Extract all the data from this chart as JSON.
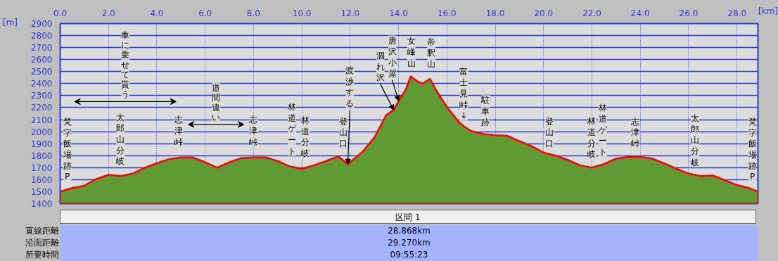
{
  "chart_data": {
    "type": "area",
    "xlabel": "[km]",
    "ylabel": "[m]",
    "xlim": [
      0,
      28.868
    ],
    "ylim": [
      1400,
      2900
    ],
    "xticks": [
      {
        "value": 0,
        "label": "0.0"
      },
      {
        "value": 2,
        "label": "2.0"
      },
      {
        "value": 4,
        "label": "4.0"
      },
      {
        "value": 6,
        "label": "6.0"
      },
      {
        "value": 8,
        "label": "8.0"
      },
      {
        "value": 10,
        "label": "10.0"
      },
      {
        "value": 12,
        "label": "12.0"
      },
      {
        "value": 14,
        "label": "14.0"
      },
      {
        "value": 16,
        "label": "16.0"
      },
      {
        "value": 18,
        "label": "18.0"
      },
      {
        "value": 20,
        "label": "20.0"
      },
      {
        "value": 22,
        "label": "22.0"
      },
      {
        "value": 24,
        "label": "24.0"
      },
      {
        "value": 26,
        "label": "26.0"
      },
      {
        "value": 28,
        "label": "28.0"
      }
    ],
    "yticks": [
      1400,
      1500,
      1600,
      1700,
      1800,
      1900,
      2000,
      2100,
      2200,
      2300,
      2400,
      2500,
      2600,
      2700,
      2800,
      2900
    ],
    "grid": true,
    "marker": "none",
    "series": [
      {
        "color": "#ff0000",
        "x": [
          0,
          0.5,
          1.0,
          1.5,
          2.0,
          2.5,
          3.0,
          3.5,
          4.0,
          4.5,
          5.0,
          5.5,
          6.0,
          6.5,
          7.0,
          7.5,
          8.0,
          8.5,
          9.0,
          9.5,
          10.0,
          10.5,
          11.0,
          11.5,
          11.9,
          12.5,
          13.0,
          13.5,
          13.8,
          14.0,
          14.3,
          14.5,
          14.8,
          15.0,
          15.3,
          15.6,
          16.0,
          16.5,
          16.7,
          17.0,
          17.5,
          18.0,
          18.5,
          19.0,
          19.5,
          20.0,
          20.5,
          21.0,
          21.5,
          22.0,
          22.5,
          23.0,
          23.5,
          24.0,
          24.5,
          25.0,
          25.5,
          26.0,
          26.5,
          27.0,
          27.5,
          28.0,
          28.5,
          28.868
        ],
        "values": [
          1500,
          1530,
          1550,
          1605,
          1640,
          1630,
          1650,
          1700,
          1737,
          1770,
          1785,
          1785,
          1745,
          1700,
          1745,
          1780,
          1785,
          1785,
          1755,
          1710,
          1690,
          1720,
          1755,
          1795,
          1730,
          1830,
          1950,
          2140,
          2180,
          2255,
          2350,
          2460,
          2415,
          2400,
          2440,
          2330,
          2205,
          2080,
          2045,
          2005,
          1980,
          1970,
          1965,
          1920,
          1880,
          1825,
          1800,
          1765,
          1720,
          1700,
          1730,
          1775,
          1790,
          1790,
          1775,
          1735,
          1690,
          1650,
          1630,
          1635,
          1595,
          1555,
          1530,
          1500
        ]
      }
    ],
    "annotations": [
      {
        "text": "梵字飯場跡P",
        "x": 0,
        "y": 1500
      },
      {
        "text": "太郎山分岐",
        "x": 2.5,
        "y": 1630
      },
      {
        "text": "志津峠",
        "x": 5.0,
        "y": 1785
      },
      {
        "text": "志津峠",
        "x": 8.0,
        "y": 1785
      },
      {
        "text": "林道ゲート",
        "x": 9.5,
        "y": 1710
      },
      {
        "text": "林道分岐",
        "x": 10.0,
        "y": 1690
      },
      {
        "text": "登山口",
        "x": 11.5,
        "y": 1795
      },
      {
        "text": "渡渉する",
        "x": 11.9,
        "y": 1730
      },
      {
        "text": "涸れ沢",
        "x": 13.8,
        "y": 2180
      },
      {
        "text": "唐沢小屋",
        "x": 14.0,
        "y": 2255
      },
      {
        "text": "女峰山",
        "x": 14.5,
        "y": 2460
      },
      {
        "text": "帝釈山",
        "x": 15.3,
        "y": 2440
      },
      {
        "text": "富士見峠↓",
        "x": 16.7,
        "y": 2045
      },
      {
        "text": "駐車跡",
        "x": 17.5,
        "y": 1980
      },
      {
        "text": "登山口",
        "x": 20.0,
        "y": 1825
      },
      {
        "text": "林道ゲート",
        "x": 22.5,
        "y": 1730
      },
      {
        "text": "林道分岐",
        "x": 22.0,
        "y": 1700
      },
      {
        "text": "志津峠",
        "x": 24.0,
        "y": 1790
      },
      {
        "text": "太郎山分岐",
        "x": 26.0,
        "y": 1650
      },
      {
        "text": "梵字飯場跡P",
        "x": 28.868,
        "y": 1500
      },
      "車に乗せて貰う",
      "道間違い",
      "区間 1",
      "直線距離",
      "28.868km",
      "沿面距離",
      "29.270km",
      "所要時間",
      "09:55:23"
    ]
  }
}
